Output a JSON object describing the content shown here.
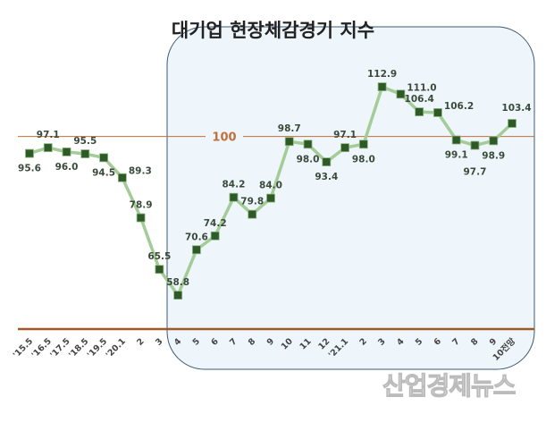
{
  "chart_data": {
    "type": "line",
    "title": "대기업 현장체감경기 지수",
    "categories": [
      "'15.5",
      "'16.5",
      "'17.5",
      "'18.5",
      "'19.5",
      "'20.1",
      "2",
      "3",
      "4",
      "5",
      "6",
      "7",
      "8",
      "9",
      "10",
      "11",
      "12",
      "'21.1",
      "2",
      "3",
      "4",
      "5",
      "6",
      "7",
      "8",
      "9",
      "10전망"
    ],
    "values": [
      95.6,
      97.1,
      96.0,
      95.5,
      94.5,
      89.3,
      78.9,
      65.5,
      58.8,
      70.6,
      74.2,
      84.2,
      79.8,
      84.0,
      98.7,
      98.0,
      93.4,
      97.1,
      98.0,
      112.9,
      111.0,
      106.4,
      106.2,
      99.1,
      97.7,
      98.9,
      103.4
    ],
    "value_labels": [
      "95.6",
      "97.1",
      "96.0",
      "95.5",
      "94.5",
      "89.3",
      "78.9",
      "65.5",
      "58.8",
      "70.6",
      "74.2",
      "84.2",
      "79.8",
      "84.0",
      "98.7",
      "98.0",
      "93.4",
      "97.1",
      "98.0",
      "112.9",
      "111.0",
      "106.4",
      "106.2",
      "99.1",
      "97.7",
      "98.9",
      "103.4"
    ],
    "reference_line": {
      "value": 100,
      "label": "100"
    },
    "ylim": [
      50,
      135
    ],
    "grid": false,
    "colors": {
      "line": "#a3cc96",
      "marker": "#2d5a27",
      "reference": "#c0703a",
      "axis": "#a0582a",
      "highlight_box": "#eef5fb",
      "highlight_border": "#3d5a75",
      "last_label": "#c0703a"
    }
  },
  "watermark": "산업경제뉴스"
}
